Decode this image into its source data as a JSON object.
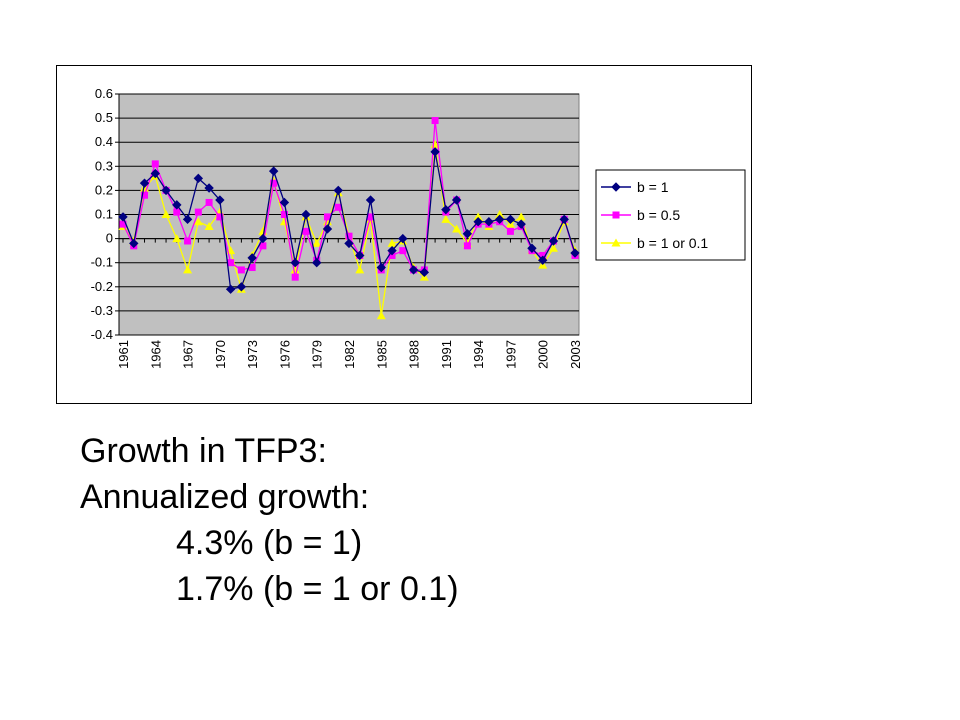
{
  "chart_data": {
    "type": "line",
    "x": [
      1961,
      1962,
      1963,
      1964,
      1965,
      1966,
      1967,
      1968,
      1969,
      1970,
      1971,
      1972,
      1973,
      1974,
      1975,
      1976,
      1977,
      1978,
      1979,
      1980,
      1981,
      1982,
      1983,
      1984,
      1985,
      1986,
      1987,
      1988,
      1989,
      1990,
      1991,
      1992,
      1993,
      1994,
      1995,
      1996,
      1997,
      1998,
      1999,
      2000,
      2001,
      2002,
      2003
    ],
    "xticks": [
      "1961",
      "1964",
      "1967",
      "1970",
      "1973",
      "1976",
      "1979",
      "1982",
      "1985",
      "1988",
      "1991",
      "1994",
      "1997",
      "2000",
      "2003"
    ],
    "yticks": [
      "0.6",
      "0.5",
      "0.4",
      "0.3",
      "0.2",
      "0.1",
      "0",
      "-0.1",
      "-0.2",
      "-0.3",
      "-0.4"
    ],
    "ylim": [
      -0.4,
      0.6
    ],
    "grid": true,
    "legend_position": "right",
    "series": [
      {
        "name": "b = 1",
        "color": "#000080",
        "marker": "diamond",
        "values": [
          0.09,
          -0.02,
          0.23,
          0.27,
          0.2,
          0.14,
          0.08,
          0.25,
          0.21,
          0.16,
          -0.21,
          -0.2,
          -0.08,
          0.0,
          0.28,
          0.15,
          -0.1,
          0.1,
          -0.1,
          0.04,
          0.2,
          -0.02,
          -0.07,
          0.16,
          -0.12,
          -0.05,
          0.0,
          -0.13,
          -0.14,
          0.36,
          0.12,
          0.16,
          0.02,
          0.07,
          0.07,
          0.08,
          0.08,
          0.06,
          -0.04,
          -0.09,
          -0.01,
          0.08,
          -0.06
        ]
      },
      {
        "name": "b = 0.5",
        "color": "#ff00ff",
        "marker": "square",
        "values": [
          0.06,
          -0.03,
          0.18,
          0.31,
          0.2,
          0.11,
          -0.01,
          0.11,
          0.15,
          0.09,
          -0.1,
          -0.13,
          -0.12,
          -0.03,
          0.23,
          0.1,
          -0.16,
          0.03,
          -0.09,
          0.09,
          0.13,
          0.01,
          -0.07,
          0.09,
          -0.13,
          -0.07,
          -0.05,
          -0.13,
          -0.13,
          0.49,
          0.11,
          0.16,
          -0.03,
          0.06,
          0.06,
          0.07,
          0.03,
          0.05,
          -0.05,
          -0.07,
          -0.01,
          0.08,
          -0.07
        ]
      },
      {
        "name": "b = 1 or  0.1",
        "color": "#ffff00",
        "marker": "triangle",
        "values": [
          0.05,
          -0.01,
          0.21,
          0.26,
          0.1,
          0.0,
          -0.13,
          0.07,
          0.05,
          0.11,
          -0.05,
          -0.21,
          -0.07,
          0.03,
          0.24,
          0.07,
          -0.13,
          0.09,
          -0.02,
          0.07,
          0.19,
          0.01,
          -0.13,
          0.08,
          -0.32,
          -0.02,
          -0.01,
          -0.12,
          -0.16,
          0.39,
          0.08,
          0.04,
          -0.02,
          0.09,
          0.05,
          0.1,
          0.06,
          0.09,
          -0.05,
          -0.11,
          -0.04,
          0.07,
          -0.05
        ]
      }
    ]
  },
  "caption": {
    "line1": "Growth in TFP3:",
    "line2": "Annualized growth:",
    "line3": "4.3% (b = 1)",
    "line4": "1.7% (b = 1 or 0.1)"
  }
}
